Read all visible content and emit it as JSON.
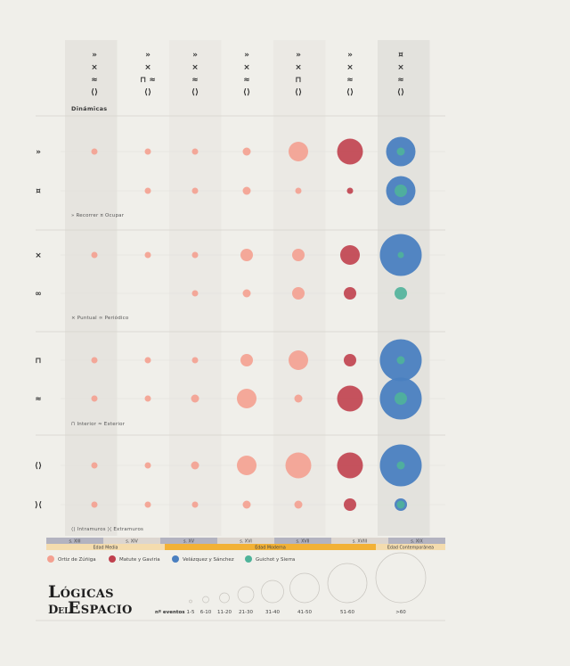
{
  "brand": {
    "line1": "Lógicas",
    "line2a": "Del",
    "line2b": "Espacio"
  },
  "header": {
    "dinamicas_label": "Dinámicas"
  },
  "column_symbols": [
    [
      "»",
      "×",
      "≈",
      "⟨⟩"
    ],
    [
      "»",
      "×",
      "⊓ ≈",
      "⟨⟩"
    ],
    [
      "»",
      "×",
      "≈",
      "⟨⟩"
    ],
    [
      "»",
      "×",
      "≈",
      "⟨⟩"
    ],
    [
      "»",
      "×",
      "⊓",
      "⟨⟩"
    ],
    [
      "»",
      "×",
      "≈",
      "⟨⟩"
    ],
    [
      "¤",
      "×",
      "≈",
      "⟨⟩"
    ]
  ],
  "row_symbols": [
    "»",
    "¤",
    "×",
    "∞",
    "⊓",
    "≈",
    "⟨⟩",
    "⟩⟨"
  ],
  "group_captions": [
    "» Recorrer  ¤ Ocupar",
    "× Puntual  ∞ Periódico",
    "⊓ Interior  ≈ Exterior",
    "⟨⟩ Intramuros  ⟩⟨ Extramuros"
  ],
  "centuries": [
    "s. XIII",
    "s. XIV",
    "s. XV",
    "s. XVI",
    "s. XVII",
    "s. XVIII",
    "s. XIX"
  ],
  "eras": [
    "Edad Media",
    "Edad Moderna",
    "Edad Contemporánea"
  ],
  "size_legend": {
    "title": "nº eventos",
    "labels": [
      "1-5",
      "6-10",
      "11-20",
      "21-30",
      "31-40",
      "41-50",
      "51-60",
      ">60"
    ]
  },
  "colors": {
    "ortiz": "#f4a090",
    "matute": "#c0404e",
    "velazquez": "#4a7fc0",
    "guichot": "#4fb39a",
    "era_bar": "#f2b136",
    "century_dark": "#b3b3c0",
    "century_light": "#dcd6d0"
  },
  "chart_data": {
    "type": "bubble-matrix",
    "x_categories": [
      "s. XIII",
      "s. XIV",
      "s. XV",
      "s. XVI",
      "s. XVII",
      "s. XVIII",
      "s. XIX"
    ],
    "y_categories": [
      "Recorrer",
      "Ocupar",
      "Puntual",
      "Periódico",
      "Interior",
      "Exterior",
      "Intramuros",
      "Extramuros"
    ],
    "size_unit": "nº eventos (size class)",
    "series": [
      {
        "name": "Ortiz de Zúñiga",
        "values": [
          [
            1,
            1,
            1,
            2,
            4,
            null,
            null
          ],
          [
            null,
            1,
            1,
            2,
            1,
            null,
            null
          ],
          [
            1,
            1,
            1,
            3,
            3,
            null,
            null
          ],
          [
            null,
            null,
            1,
            2,
            3,
            null,
            null
          ],
          [
            1,
            1,
            1,
            3,
            4,
            null,
            null
          ],
          [
            1,
            1,
            2,
            4,
            2,
            null,
            null
          ],
          [
            1,
            1,
            2,
            4,
            5,
            null,
            null
          ],
          [
            1,
            1,
            1,
            2,
            2,
            null,
            null
          ]
        ]
      },
      {
        "name": "Matute y Gaviria",
        "values": [
          [
            null,
            null,
            null,
            null,
            null,
            5,
            null
          ],
          [
            null,
            null,
            null,
            null,
            null,
            1,
            null
          ],
          [
            null,
            null,
            null,
            null,
            null,
            4,
            null
          ],
          [
            null,
            null,
            null,
            null,
            null,
            3,
            null
          ],
          [
            null,
            null,
            null,
            null,
            null,
            3,
            null
          ],
          [
            null,
            null,
            null,
            null,
            null,
            5,
            null
          ],
          [
            null,
            null,
            null,
            null,
            null,
            5,
            null
          ],
          [
            null,
            null,
            null,
            null,
            null,
            3,
            null
          ]
        ]
      },
      {
        "name": "Velázquez y Sánchez",
        "values": [
          [
            null,
            null,
            null,
            null,
            null,
            null,
            6
          ],
          [
            null,
            null,
            null,
            null,
            null,
            null,
            6
          ],
          [
            null,
            null,
            null,
            null,
            null,
            null,
            7
          ],
          [
            null,
            null,
            null,
            null,
            null,
            null,
            null
          ],
          [
            null,
            null,
            null,
            null,
            null,
            null,
            7
          ],
          [
            null,
            null,
            null,
            null,
            null,
            null,
            7
          ],
          [
            null,
            null,
            null,
            null,
            null,
            null,
            7
          ],
          [
            null,
            null,
            null,
            null,
            null,
            null,
            3
          ]
        ]
      },
      {
        "name": "Guichot y Sierra",
        "values": [
          [
            null,
            null,
            null,
            null,
            null,
            null,
            2
          ],
          [
            null,
            null,
            null,
            null,
            null,
            null,
            3
          ],
          [
            null,
            null,
            null,
            null,
            null,
            null,
            1
          ],
          [
            null,
            null,
            null,
            null,
            null,
            null,
            3
          ],
          [
            null,
            null,
            null,
            null,
            null,
            null,
            2
          ],
          [
            null,
            null,
            null,
            null,
            null,
            null,
            3
          ],
          [
            null,
            null,
            null,
            null,
            null,
            null,
            2
          ],
          [
            null,
            null,
            null,
            null,
            null,
            null,
            2
          ]
        ]
      }
    ]
  }
}
